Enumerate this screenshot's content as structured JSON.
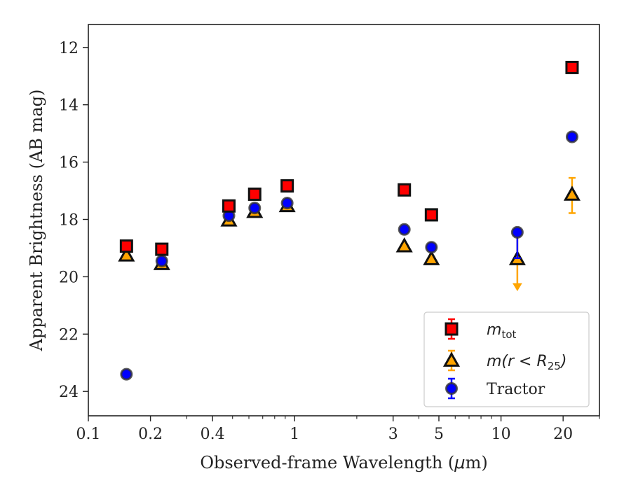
{
  "chart_data": {
    "type": "scatter",
    "xscale": "log",
    "xlim": [
      0.1,
      30
    ],
    "ylim": [
      24.85,
      11.2
    ],
    "y_inverted": true,
    "xlabel_prefix": "Observed-frame Wavelength (",
    "xlabel_mu": "μ",
    "xlabel_suffix": "m)",
    "ylabel": "Apparent Brightness (AB mag)",
    "x_ticks": [
      {
        "value": 0.1,
        "label": "0.1"
      },
      {
        "value": 0.2,
        "label": "0.2"
      },
      {
        "value": 0.4,
        "label": "0.4"
      },
      {
        "value": 1,
        "label": "1"
      },
      {
        "value": 3,
        "label": "3"
      },
      {
        "value": 5,
        "label": "5"
      },
      {
        "value": 10,
        "label": "10"
      },
      {
        "value": 20,
        "label": "20"
      }
    ],
    "y_ticks": [
      {
        "value": 12,
        "label": "12"
      },
      {
        "value": 14,
        "label": "14"
      },
      {
        "value": 16,
        "label": "16"
      },
      {
        "value": 18,
        "label": "18"
      },
      {
        "value": 20,
        "label": "20"
      },
      {
        "value": 22,
        "label": "22"
      },
      {
        "value": 24,
        "label": "24"
      }
    ],
    "grid": false,
    "legend_position": "bottom-right",
    "legend": [
      {
        "key": "mtot",
        "base": "m",
        "sub": "tot",
        "marker": "square"
      },
      {
        "key": "mr25",
        "base": "m(r < R",
        "sub": "25",
        "close": ")",
        "marker": "triangle"
      },
      {
        "key": "tractor",
        "label": "Tractor",
        "marker": "circle"
      }
    ],
    "series": [
      {
        "key": "mtot",
        "marker": "square",
        "color": "#ff0000",
        "edge": "#111111",
        "points": [
          {
            "x": 0.153,
            "y": 18.93
          },
          {
            "x": 0.227,
            "y": 19.04
          },
          {
            "x": 0.48,
            "y": 17.53
          },
          {
            "x": 0.64,
            "y": 17.12
          },
          {
            "x": 0.92,
            "y": 16.83
          },
          {
            "x": 3.4,
            "y": 16.97
          },
          {
            "x": 4.6,
            "y": 17.84
          },
          {
            "x": 22.1,
            "y": 12.7
          }
        ]
      },
      {
        "key": "mr25",
        "marker": "triangle",
        "color": "#ffa500",
        "edge": "#111111",
        "points": [
          {
            "x": 0.153,
            "y": 19.25
          },
          {
            "x": 0.227,
            "y": 19.55
          },
          {
            "x": 0.48,
            "y": 18.03
          },
          {
            "x": 0.64,
            "y": 17.73
          },
          {
            "x": 0.92,
            "y": 17.53
          },
          {
            "x": 3.4,
            "y": 18.93
          },
          {
            "x": 4.6,
            "y": 19.38
          },
          {
            "x": 12.0,
            "y": 19.38,
            "err": [
              18.43,
              20.43
            ],
            "upper_limit": true
          },
          {
            "x": 22.1,
            "y": 17.13,
            "err": [
              16.55,
              17.78
            ]
          }
        ]
      },
      {
        "key": "tractor",
        "marker": "circle",
        "color": "#0000ff",
        "edge": "#333333",
        "points": [
          {
            "x": 0.153,
            "y": 23.4
          },
          {
            "x": 0.227,
            "y": 19.45
          },
          {
            "x": 0.48,
            "y": 17.87
          },
          {
            "x": 0.64,
            "y": 17.6
          },
          {
            "x": 0.92,
            "y": 17.43
          },
          {
            "x": 3.4,
            "y": 18.35
          },
          {
            "x": 4.6,
            "y": 18.97
          },
          {
            "x": 12.0,
            "y": 18.45,
            "err": [
              18.45,
              19.35
            ]
          },
          {
            "x": 22.1,
            "y": 15.12
          }
        ]
      }
    ]
  }
}
